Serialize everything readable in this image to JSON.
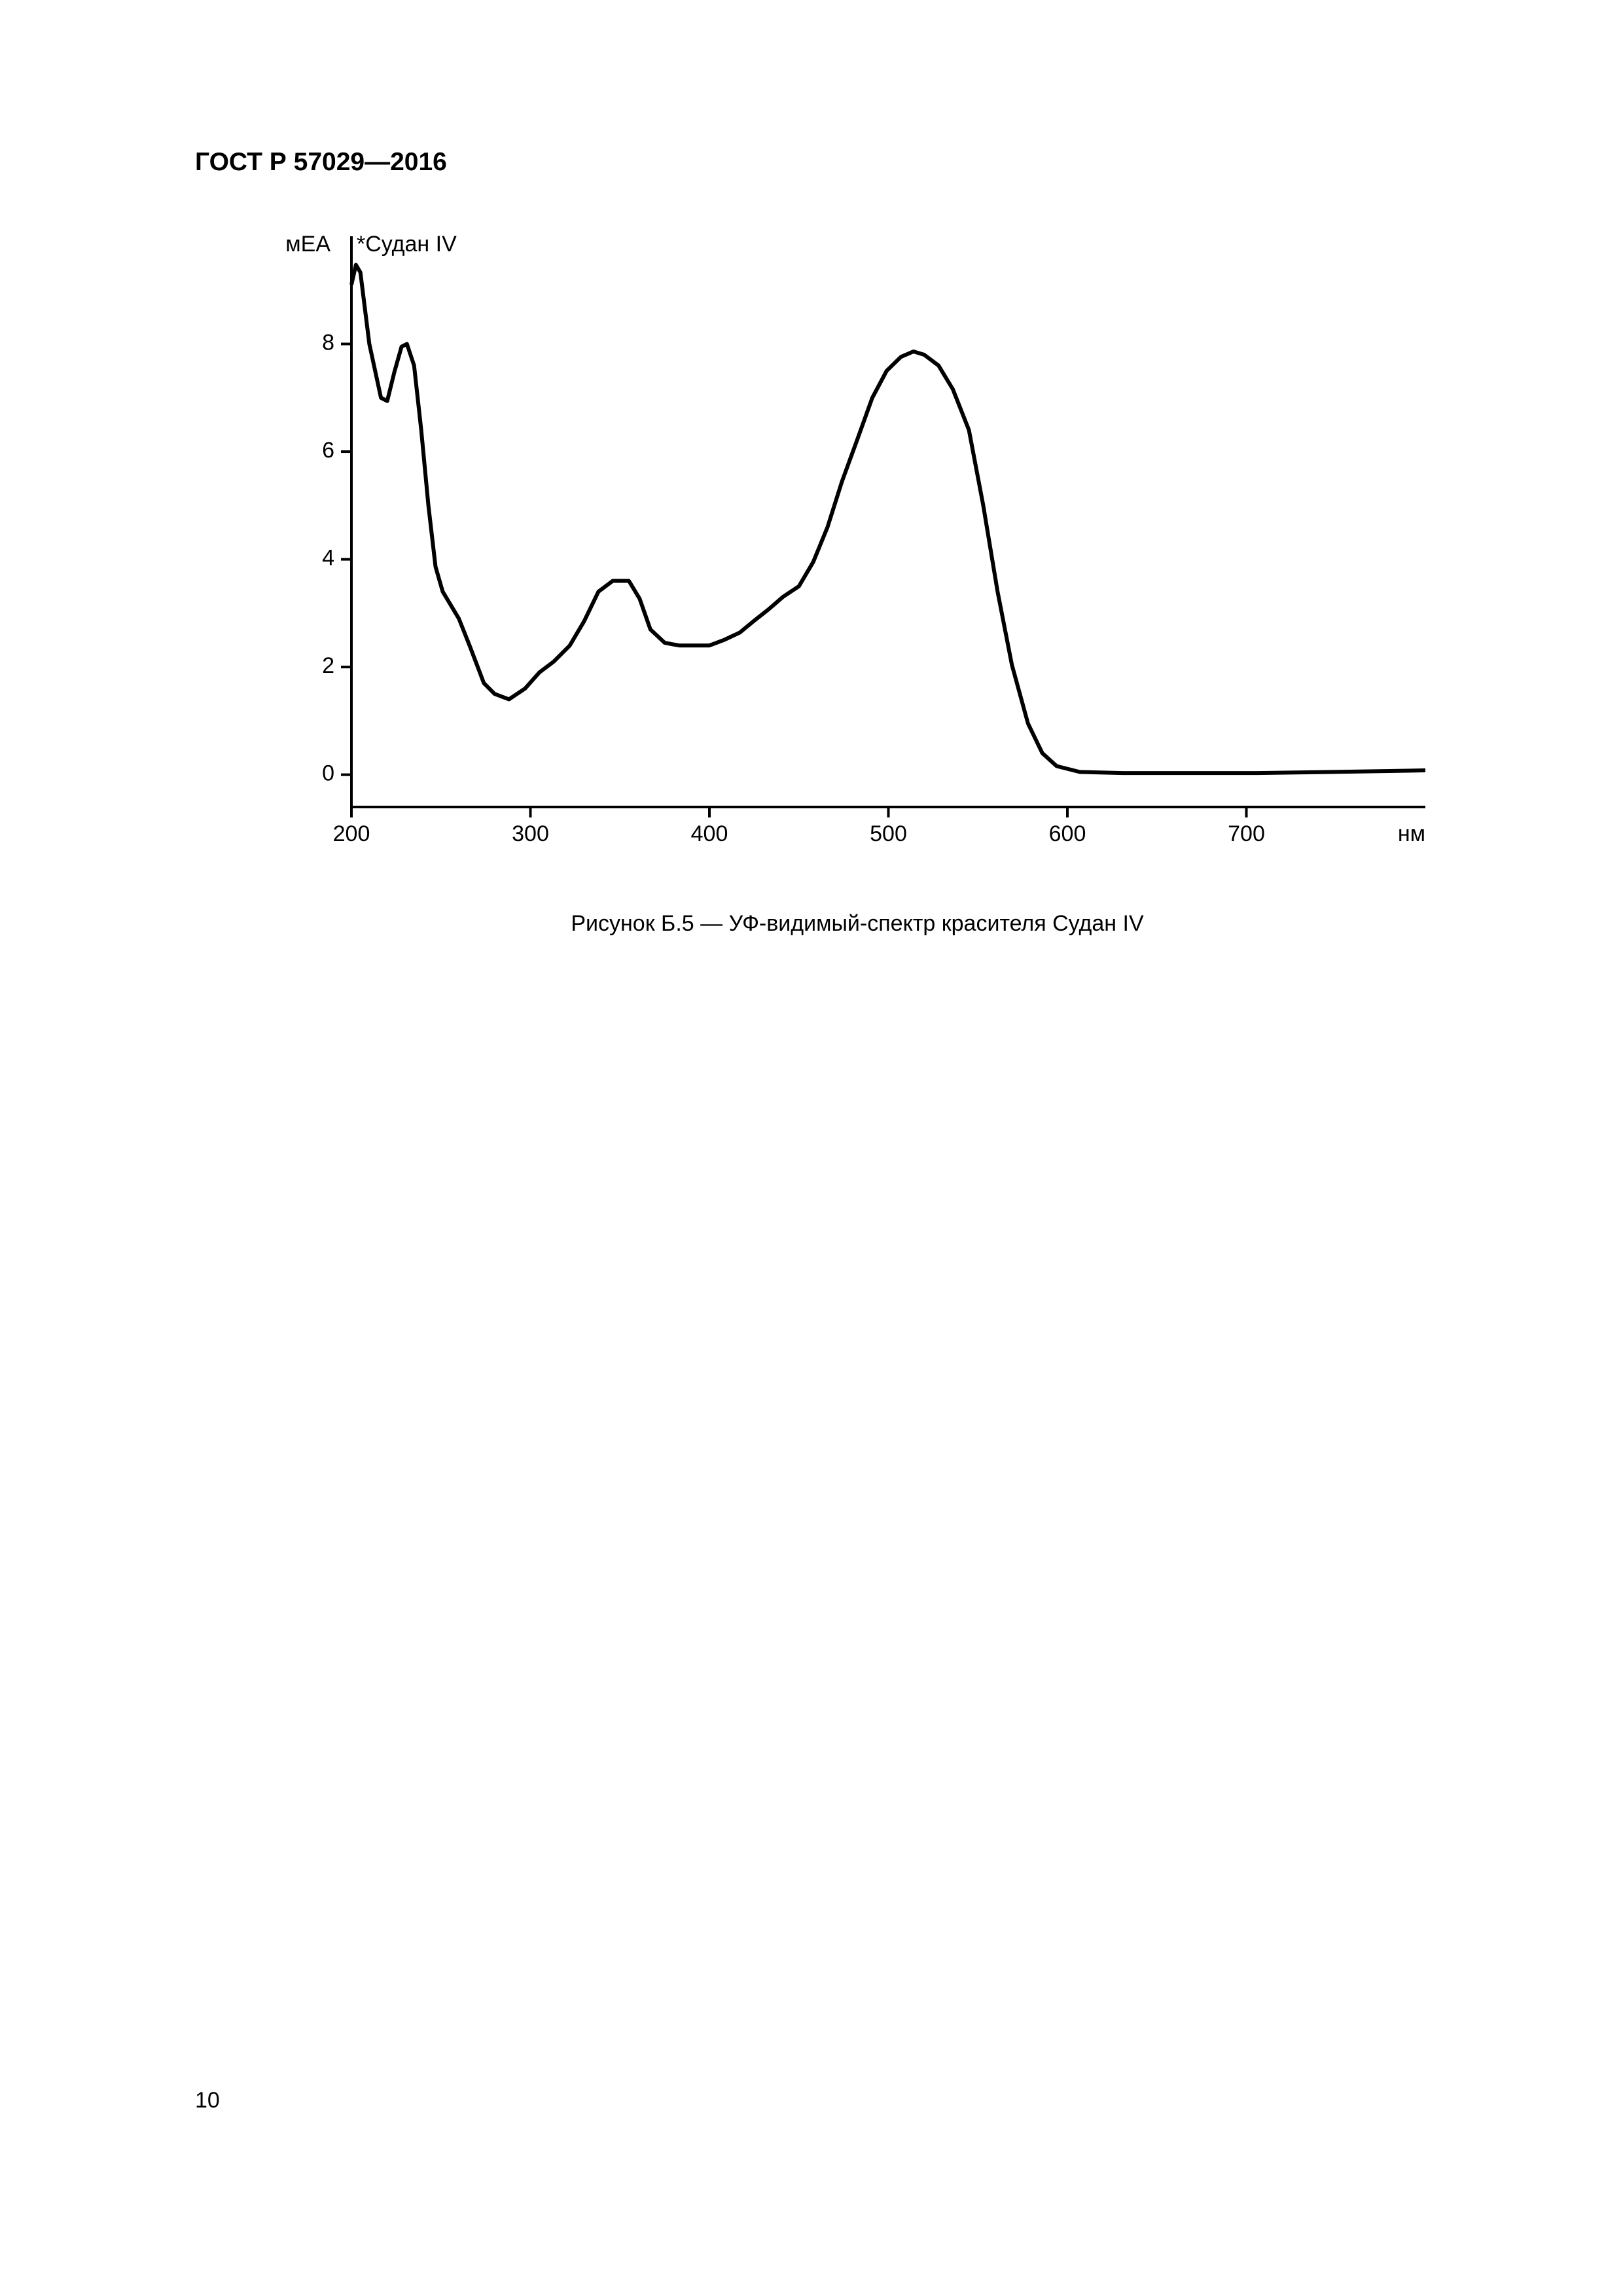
{
  "header": {
    "title": "ГОСТ Р 57029—2016"
  },
  "chart_data": {
    "type": "line",
    "y_label": "мЕА",
    "x_label": "нм",
    "annotation": "*Судан IV",
    "x": [
      200,
      202.5,
      205,
      210,
      216.5,
      220,
      224,
      228,
      231,
      235,
      239,
      243,
      247,
      251,
      260,
      266,
      274,
      280,
      288,
      297,
      305,
      313,
      322,
      330,
      338,
      346,
      355,
      361,
      367,
      375,
      383,
      392,
      400,
      408,
      417,
      425,
      433,
      441,
      450,
      458,
      466,
      474,
      483,
      491,
      499,
      507,
      514,
      520,
      528,
      536,
      545,
      553,
      561,
      569,
      578,
      586,
      594,
      607,
      631,
      664,
      706,
      747,
      800
    ],
    "series": [
      {
        "color": "#000000",
        "values": [
          9.1,
          9.47,
          9.33,
          8.0,
          7.0,
          6.94,
          7.48,
          7.95,
          8.0,
          7.6,
          6.4,
          5.0,
          3.86,
          3.4,
          2.9,
          2.4,
          1.7,
          1.5,
          1.4,
          1.6,
          1.9,
          2.1,
          2.4,
          2.85,
          3.4,
          3.6,
          3.6,
          3.27,
          2.7,
          2.45,
          2.4,
          2.4,
          2.4,
          2.5,
          2.64,
          2.86,
          3.07,
          3.3,
          3.5,
          3.95,
          4.6,
          5.44,
          6.26,
          7.0,
          7.5,
          7.76,
          7.86,
          7.8,
          7.6,
          7.16,
          6.4,
          5.0,
          3.4,
          2.04,
          0.95,
          0.4,
          0.16,
          0.05,
          0.03,
          0.03,
          0.03,
          0.05,
          0.08
        ]
      }
    ],
    "xlim": [
      200,
      800
    ],
    "xticks": [
      200,
      300,
      400,
      500,
      600,
      700
    ],
    "ylim": [
      -0.6,
      10
    ],
    "yticks": [
      0,
      2,
      4,
      6,
      8
    ]
  },
  "caption": "Рисунок Б.5 — УФ-видимый-спектр красителя Судан IV",
  "page_number": "10"
}
